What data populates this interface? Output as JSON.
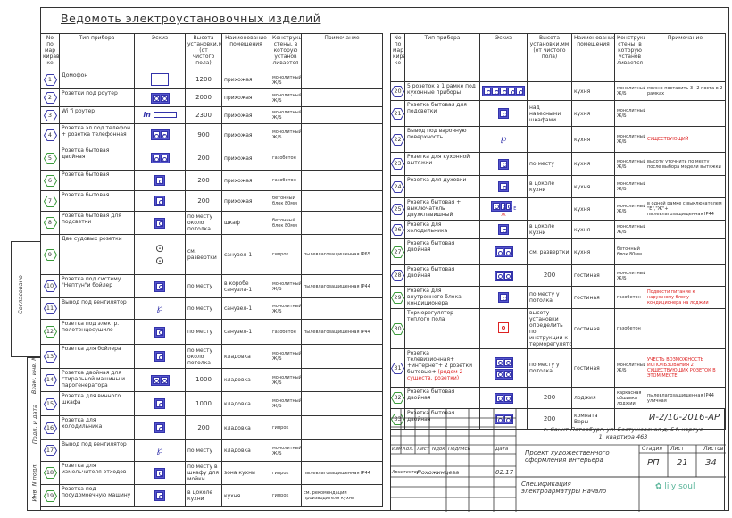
{
  "title": "Ведомоть электроустановочных изделий",
  "headers": {
    "no": "No по мар кирав ке",
    "type": "Тип прибора",
    "sketch": "Эскиз",
    "height": "Высота установки,мм (от чистого пола)",
    "room": "Наименование помещения",
    "wall": "Конструкция стены, в которую установ ливается",
    "note": "Примечание"
  },
  "colors": {
    "blue_marker": "#3a3aa8",
    "green_marker": "#3a9a3a",
    "socket_fill": "#5555cc",
    "note_red": "#dd2222"
  },
  "left_rows": [
    {
      "no": "1",
      "c": "blue",
      "type": "Домофон",
      "sketch": "box",
      "height": "1200",
      "room": "прихожая",
      "wall": "монолитный Ж/Б",
      "note": ""
    },
    {
      "no": "2",
      "c": "blue",
      "type": "Розетки под роутер",
      "sketch": "socket-2",
      "height": "2000",
      "room": "прихожая",
      "wall": "монолитный Ж/Б",
      "note": ""
    },
    {
      "no": "3",
      "c": "blue",
      "type": "Wi fi роутер",
      "sketch": "wifi",
      "height": "2300",
      "room": "прихожая",
      "wall": "монолитный Ж/Б",
      "note": ""
    },
    {
      "no": "4",
      "c": "blue",
      "type": "Розетка эл.под телефон + розетка телефонная",
      "sketch": "socket-phone",
      "height": "900",
      "room": "прихожая",
      "wall": "монолитный Ж/Б",
      "note": ""
    },
    {
      "no": "5",
      "c": "green",
      "type": "Розетка бытовая двойная",
      "sketch": "socket-2",
      "height": "200",
      "room": "прихожая",
      "wall": "газобетон",
      "note": ""
    },
    {
      "no": "6",
      "c": "green",
      "type": "Розетка бытовая",
      "sketch": "socket-1",
      "height": "200",
      "room": "прихожая",
      "wall": "газобетон",
      "note": ""
    },
    {
      "no": "7",
      "c": "green",
      "type": "Розетка бытовая",
      "sketch": "socket-1",
      "height": "200",
      "room": "прихожая",
      "wall": "бетонный блок 80мм",
      "note": ""
    },
    {
      "no": "8",
      "c": "green",
      "type": "Розетка бытовая для подсветки",
      "sketch": "socket-1",
      "height": "по месту около потолка",
      "room": "шкаф",
      "wall": "бетонный блок 80мм",
      "note": ""
    },
    {
      "no": "9",
      "c": "green",
      "type": "Две судовых розетки",
      "sketch": "marine",
      "height": "см. развертки",
      "room": "санузел-1",
      "wall": "гипрок",
      "note": "пылевлагозащищенная IP65"
    },
    {
      "no": "10",
      "c": "blue",
      "type": "Розетка под систему \"Нептун\"и бойлер",
      "sketch": "socket-1",
      "height": "по месту",
      "room": "в коробе санузла-1",
      "wall": "монолитный Ж/Б",
      "note": "пылевлагозащищенная IP44"
    },
    {
      "no": "11",
      "c": "blue",
      "type": "Вывод под вентилятор",
      "sketch": "fan",
      "height": "по месту",
      "room": "санузел-1",
      "wall": "монолитный Ж/Б",
      "note": ""
    },
    {
      "no": "12",
      "c": "green",
      "type": "Розетка под электр. полотенцесушило",
      "sketch": "socket-1",
      "height": "по месту",
      "room": "санузел-1",
      "wall": "газобетон",
      "note": "пылевлагозащищенная IP44"
    },
    {
      "no": "13",
      "c": "blue",
      "type": "Розетка для бойлера",
      "sketch": "socket-1",
      "height": "по месту около потолка",
      "room": "кладовка",
      "wall": "монолитный Ж/Б",
      "note": ""
    },
    {
      "no": "14",
      "c": "blue",
      "type": "Розетка двойная для стиральной машины и парогенератора",
      "sketch": "socket-2",
      "height": "1000",
      "room": "кладовка",
      "wall": "монолитный Ж/Б",
      "note": ""
    },
    {
      "no": "15",
      "c": "blue",
      "type": "Розетка для винного шкафа",
      "sketch": "socket-1",
      "height": "1000",
      "room": "кладовка",
      "wall": "монолитный Ж/Б",
      "note": ""
    },
    {
      "no": "16",
      "c": "blue",
      "type": "Розетка для холодильника",
      "sketch": "socket-1",
      "height": "200",
      "room": "кладовка",
      "wall": "гипрок",
      "note": ""
    },
    {
      "no": "17",
      "c": "blue",
      "type": "Вывод под вентилятор",
      "sketch": "fan",
      "height": "по месту",
      "room": "кладовка",
      "wall": "монолитный Ж/Б",
      "note": ""
    },
    {
      "no": "18",
      "c": "green",
      "type": "Розетка для измельчителя отходов",
      "sketch": "socket-1",
      "height": "по месту в шкафу для мойки",
      "room": "зона кухни",
      "wall": "гипрок",
      "note": "пылевлагозащищенная IP44"
    },
    {
      "no": "19",
      "c": "green",
      "type": "Розетка под посудомоечную машину",
      "sketch": "socket-1",
      "height": "в цоколе кухни",
      "room": "кухня",
      "wall": "гипрок",
      "note": "см. рекомендации производителя кухни"
    }
  ],
  "right_rows": [
    {
      "no": "20",
      "c": "blue",
      "type": "5 розеток в 1 рамке под кухонные приборы",
      "sketch": "socket-5",
      "height": "",
      "room": "кухня",
      "wall": "монолитный Ж/Б",
      "note": "можно поставить 3+2 поста в 2 рамках"
    },
    {
      "no": "21",
      "c": "blue",
      "type": "Розетка бытовая для подсветки",
      "sketch": "socket-1",
      "height": "над навесными шкафами",
      "room": "кухня",
      "wall": "монолитный Ж/Б",
      "note": ""
    },
    {
      "no": "22",
      "c": "blue",
      "type": "Вывод под варочную поверхность",
      "sketch": "fan",
      "height": "",
      "room": "кухня",
      "wall": "монолитный Ж/Б",
      "note": "СУЩЕСТВУЮЩИЙ",
      "red": true
    },
    {
      "no": "23",
      "c": "blue",
      "type": "Розетка для кухонной вытяжки",
      "sketch": "socket-1",
      "height": "по месту",
      "room": "кухня",
      "wall": "монолитный Ж/Б",
      "note": "высоту уточнить по месту после выбора модели вытяжки"
    },
    {
      "no": "24",
      "c": "blue",
      "type": "Розетка для духовки",
      "sketch": "socket-1",
      "height": "в цоколе кухни",
      "room": "кухня",
      "wall": "монолитный Ж/Б",
      "note": ""
    },
    {
      "no": "25",
      "c": "blue",
      "type": "Розетка бытовая + выключатель двухклавишный",
      "sketch": "switch",
      "height": "",
      "room": "кухня",
      "wall": "монолитный Ж/Б",
      "note": "в одной рамке с выключателем \"Е\",\"Ж\"+ пылевлагозащищенная IP44"
    },
    {
      "no": "26",
      "c": "blue",
      "type": "Розетка для холодильника",
      "sketch": "socket-1",
      "height": "в цоколе кухни",
      "room": "кухня",
      "wall": "монолитный Ж/Б",
      "note": ""
    },
    {
      "no": "27",
      "c": "green",
      "type": "Розетка бытовая двойная",
      "sketch": "socket-2",
      "height": "см. развертки",
      "room": "кухня",
      "wall": "бетонный блок 80мм",
      "note": ""
    },
    {
      "no": "28",
      "c": "blue",
      "type": "Розетка бытовая двойная",
      "sketch": "socket-2",
      "height": "200",
      "room": "гостиная",
      "wall": "монолитный Ж/Б",
      "note": ""
    },
    {
      "no": "29",
      "c": "green",
      "type": "Розетка для внутреннего блока кондиционера",
      "sketch": "socket-1",
      "height": "по месту у потолка",
      "room": "гостиная",
      "wall": "газобетон",
      "note": "Подвести питание к наружному блоку кондиционера на лоджии",
      "red": true
    },
    {
      "no": "30",
      "c": "green",
      "type": "Терморегулятор теплого пола",
      "sketch": "thermostat",
      "height": "высоту установки определить по инструкции к терморегулятору",
      "room": "гостиная",
      "wall": "газобетон",
      "note": ""
    },
    {
      "no": "31",
      "c": "blue",
      "type": "Розетка телевизионная+ +интернет+ 2 розетки бытовые+",
      "type_red": "(рядом 2 существ. розетки)",
      "sketch": "tv",
      "height": "по месту у потолка",
      "room": "гостиная",
      "wall": "монолитный Ж/Б",
      "note": "УЧЕСТЬ ВОЗМОЖНОСТЬ ИСПОЛЬЗОВАНИЯ 2 СУЩЕСТВУЮЩИХ РОЗЕТОК В ЭТОМ МЕСТЕ",
      "red": true
    },
    {
      "no": "32",
      "c": "green",
      "type": "Розетка бытовая двойная",
      "sketch": "socket-2",
      "height": "200",
      "room": "лоджия",
      "wall": "каркасная обшивка лоджии",
      "note": "пылевлагозащищенная IP44 уличная"
    },
    {
      "no": "33",
      "c": "green",
      "type": "Розетка бытовая двойная",
      "sketch": "socket-2",
      "height": "200",
      "room": "комната Веры",
      "wall": "",
      "note": ""
    }
  ],
  "side_stamp": {
    "agreed": "Согласовано",
    "replace_inv": "Взам. инв. N",
    "sign_date": "Подп. и дата",
    "inv_orig": "Инв. N подл."
  },
  "title_block": {
    "code": "И-2/10-2016-АР",
    "address": "г. Санкт-Петербург, ул. Бестужевская д. 54, корпус 1, квартира 463",
    "cols": [
      "Изм.",
      "Кол.",
      "Лист",
      "Nдок",
      "Подпись",
      "Дата"
    ],
    "role": "Архитектор",
    "person": "Похожинцева",
    "date": "02.17",
    "project": "Проект художественного оформления интерьера",
    "stage_label": "Стадия",
    "sheet_label": "Лист",
    "sheets_label": "Листов",
    "stage": "РП",
    "sheet": "21",
    "sheets": "34",
    "doc": "Спецификация электроарматуры Начало",
    "logo": "lily soul"
  }
}
